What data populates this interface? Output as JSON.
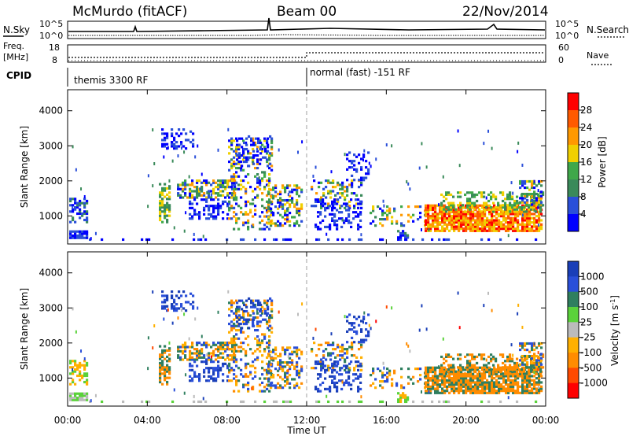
{
  "header": {
    "station": "McMurdo (fitACF)",
    "beam": "Beam 00",
    "date": "22/Nov/2014"
  },
  "top_strip": {
    "left_label": "N.Sky",
    "right_label": "N.Search",
    "left_ticks": [
      "10^5",
      "10^0"
    ],
    "right_ticks": [
      "10^5",
      "10^0"
    ],
    "freq_label_top": "Freq.",
    "freq_label_bottom": "[MHz]",
    "freq_ticks": [
      "18",
      "8"
    ],
    "nave_label": "Nave",
    "nave_ticks": [
      "60",
      "0"
    ],
    "cpid_label": "CPID",
    "cpid_segments": [
      "themis 3300 RF",
      "normal (fast) -151 RF"
    ]
  },
  "colors": {
    "power_scale": [
      "#0000ff",
      "#2a4fd9",
      "#3a8a5a",
      "#3fa84a",
      "#f0d000",
      "#ff9900",
      "#ff5a00",
      "#ff0000"
    ],
    "velocity_scale": [
      "#ff0000",
      "#ff4a00",
      "#ff8c00",
      "#ffb000",
      "#bbbbbb",
      "#5ad23a",
      "#2f7f5f",
      "#2a4fd9",
      "#1a3fb8"
    ],
    "ground_scatter": "#999999"
  },
  "chart_data": [
    {
      "type": "heatmap",
      "name": "power",
      "ylabel": "Slant Range [km]",
      "x_ticks": [
        "00:00",
        "04:00",
        "08:00",
        "12:00",
        "16:00",
        "20:00",
        "00:00"
      ],
      "y_ticks": [
        "1000",
        "2000",
        "3000",
        "4000"
      ],
      "ylim": [
        200,
        4600
      ],
      "colorbar_label": "Power [dB]",
      "colorbar_ticks": [
        "4",
        "8",
        "12",
        "16",
        "20",
        "24",
        "28"
      ]
    },
    {
      "type": "heatmap",
      "name": "velocity",
      "ylabel": "Slant Range [km]",
      "xlabel": "Time UT",
      "x_ticks": [
        "00:00",
        "04:00",
        "08:00",
        "12:00",
        "16:00",
        "20:00",
        "00:00"
      ],
      "y_ticks": [
        "1000",
        "2000",
        "3000",
        "4000"
      ],
      "ylim": [
        200,
        4600
      ],
      "colorbar_label": "Velocity [m s",
      "colorbar_label_sup": "-1",
      "colorbar_label_end": "]",
      "colorbar_ticks": [
        "1000",
        "500",
        "100",
        "25",
        "-25",
        "-100",
        "-500",
        "-1000"
      ]
    }
  ]
}
